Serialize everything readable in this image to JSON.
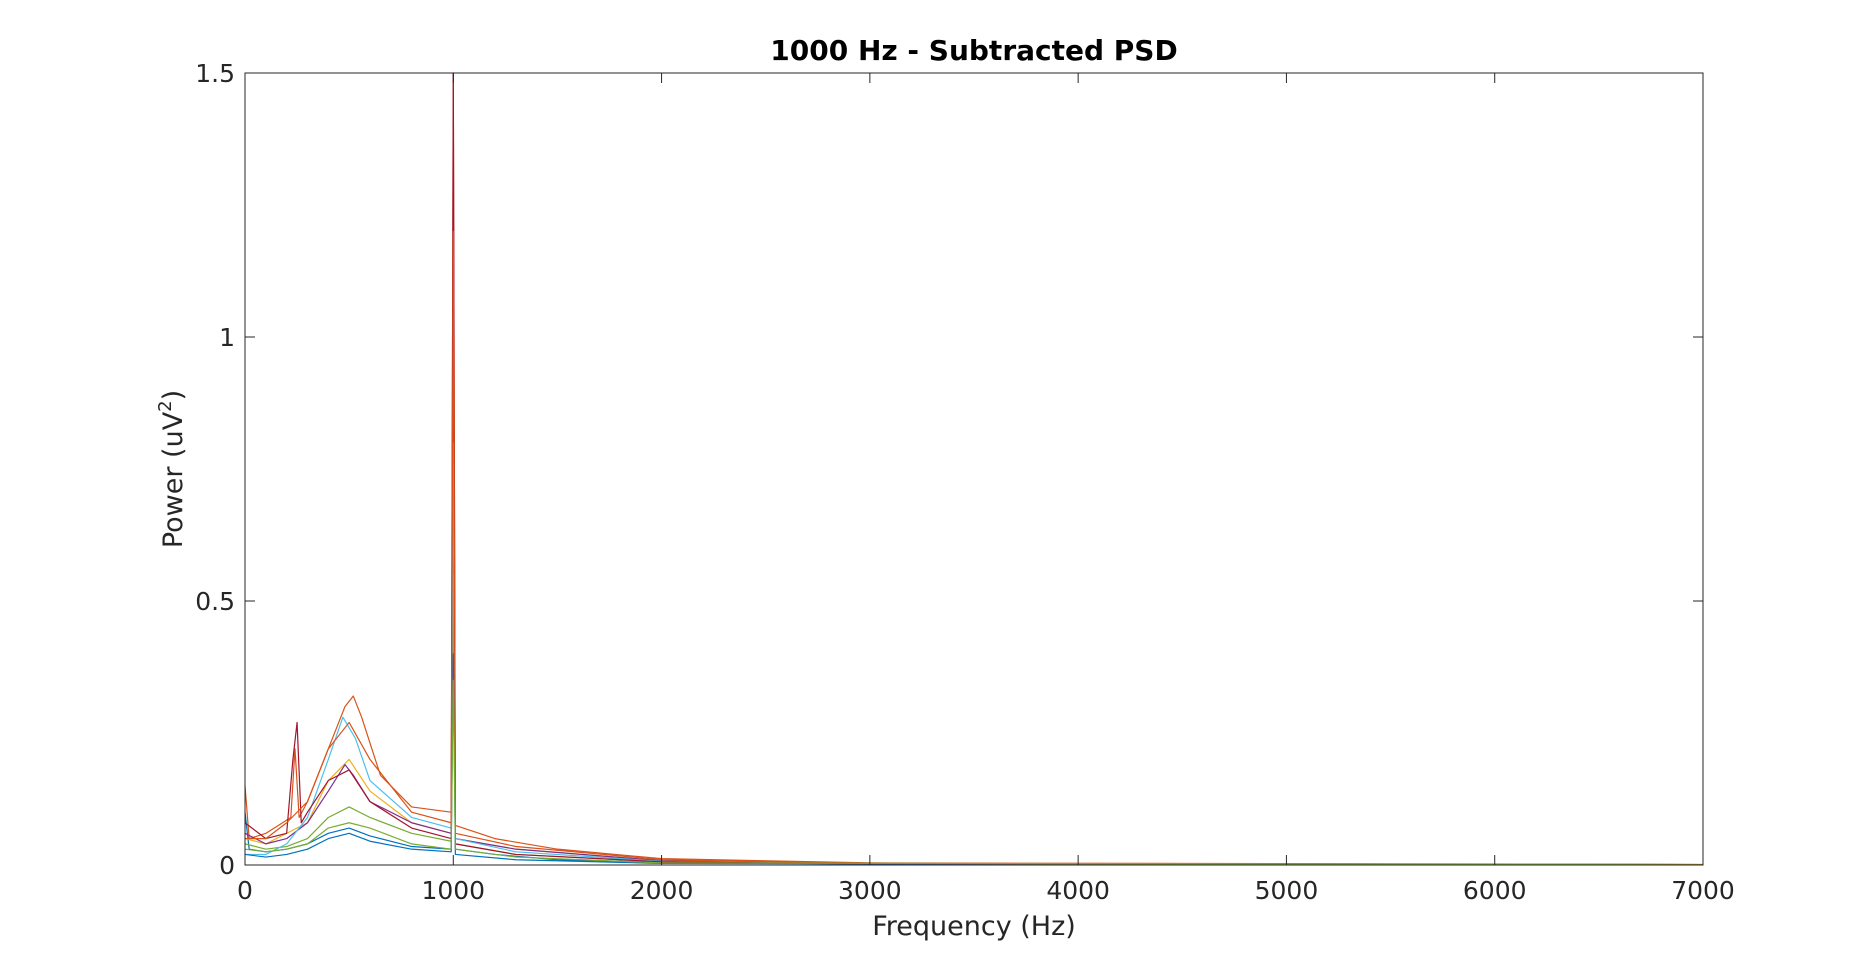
{
  "chart_data": {
    "type": "line",
    "title": "1000 Hz - Subtracted PSD",
    "xlabel": "Frequency (Hz)",
    "ylabel_base": "Power (uV",
    "ylabel_sup": "2",
    "ylabel_end": ")",
    "xlim": [
      0,
      7000
    ],
    "ylim": [
      0,
      1.5
    ],
    "x_ticks": [
      0,
      1000,
      2000,
      3000,
      4000,
      5000,
      6000,
      7000
    ],
    "x_tick_labels": [
      "0",
      "1000",
      "2000",
      "3000",
      "4000",
      "5000",
      "6000",
      "7000"
    ],
    "y_ticks": [
      0,
      0.5,
      1,
      1.5
    ],
    "y_tick_labels": [
      "0",
      "0.5",
      "1",
      "1.5"
    ],
    "grid": false,
    "legend": "none",
    "series": [
      {
        "color": "#0072BD",
        "values": [
          [
            0,
            0.1
          ],
          [
            20,
            0.03
          ],
          [
            100,
            0.025
          ],
          [
            200,
            0.03
          ],
          [
            300,
            0.04
          ],
          [
            400,
            0.06
          ],
          [
            500,
            0.07
          ],
          [
            600,
            0.055
          ],
          [
            800,
            0.035
          ],
          [
            990,
            0.03
          ],
          [
            1000,
            0.76
          ],
          [
            1010,
            0.03
          ],
          [
            1200,
            0.02
          ],
          [
            1500,
            0.01
          ],
          [
            2000,
            0.005
          ],
          [
            3000,
            0.002
          ],
          [
            7000,
            0.0005
          ]
        ]
      },
      {
        "color": "#D95319",
        "values": [
          [
            0,
            0.15
          ],
          [
            20,
            0.05
          ],
          [
            100,
            0.06
          ],
          [
            220,
            0.09
          ],
          [
            240,
            0.22
          ],
          [
            260,
            0.09
          ],
          [
            300,
            0.12
          ],
          [
            400,
            0.22
          ],
          [
            480,
            0.3
          ],
          [
            520,
            0.32
          ],
          [
            560,
            0.28
          ],
          [
            650,
            0.17
          ],
          [
            800,
            0.11
          ],
          [
            990,
            0.1
          ],
          [
            1000,
            1.5
          ],
          [
            1010,
            0.075
          ],
          [
            1200,
            0.05
          ],
          [
            1500,
            0.03
          ],
          [
            2000,
            0.012
          ],
          [
            3000,
            0.004
          ],
          [
            7000,
            0.001
          ]
        ]
      },
      {
        "color": "#EDB120",
        "values": [
          [
            0,
            0.05
          ],
          [
            100,
            0.04
          ],
          [
            200,
            0.06
          ],
          [
            300,
            0.08
          ],
          [
            400,
            0.16
          ],
          [
            500,
            0.2
          ],
          [
            600,
            0.14
          ],
          [
            800,
            0.08
          ],
          [
            990,
            0.06
          ],
          [
            1000,
            0.9
          ],
          [
            1010,
            0.05
          ],
          [
            1300,
            0.03
          ],
          [
            2000,
            0.008
          ],
          [
            3000,
            0.003
          ],
          [
            7000,
            0.0008
          ]
        ]
      },
      {
        "color": "#7E2F8E",
        "values": [
          [
            0,
            0.06
          ],
          [
            100,
            0.04
          ],
          [
            200,
            0.05
          ],
          [
            300,
            0.08
          ],
          [
            400,
            0.14
          ],
          [
            480,
            0.19
          ],
          [
            520,
            0.17
          ],
          [
            600,
            0.12
          ],
          [
            800,
            0.08
          ],
          [
            990,
            0.06
          ],
          [
            1000,
            1.1
          ],
          [
            1010,
            0.05
          ],
          [
            1300,
            0.03
          ],
          [
            2000,
            0.008
          ],
          [
            3000,
            0.003
          ],
          [
            7000,
            0.0008
          ]
        ]
      },
      {
        "color": "#77AC30",
        "values": [
          [
            0,
            0.04
          ],
          [
            100,
            0.03
          ],
          [
            200,
            0.035
          ],
          [
            300,
            0.05
          ],
          [
            400,
            0.09
          ],
          [
            500,
            0.11
          ],
          [
            600,
            0.09
          ],
          [
            800,
            0.06
          ],
          [
            990,
            0.045
          ],
          [
            1000,
            0.55
          ],
          [
            1010,
            0.04
          ],
          [
            1300,
            0.02
          ],
          [
            2000,
            0.006
          ],
          [
            3000,
            0.002
          ],
          [
            7000,
            0.0006
          ]
        ]
      },
      {
        "color": "#4DBEEE",
        "values": [
          [
            0,
            0.02
          ],
          [
            100,
            0.02
          ],
          [
            200,
            0.04
          ],
          [
            300,
            0.09
          ],
          [
            400,
            0.2
          ],
          [
            470,
            0.28
          ],
          [
            530,
            0.24
          ],
          [
            600,
            0.16
          ],
          [
            800,
            0.09
          ],
          [
            990,
            0.07
          ],
          [
            1000,
            0.8
          ],
          [
            1010,
            0.05
          ],
          [
            1300,
            0.025
          ],
          [
            2000,
            0.007
          ],
          [
            3000,
            0.002
          ],
          [
            7000,
            0.0006
          ]
        ]
      },
      {
        "color": "#A2142F",
        "values": [
          [
            0,
            0.08
          ],
          [
            100,
            0.05
          ],
          [
            200,
            0.06
          ],
          [
            230,
            0.2
          ],
          [
            250,
            0.27
          ],
          [
            270,
            0.08
          ],
          [
            300,
            0.1
          ],
          [
            400,
            0.16
          ],
          [
            500,
            0.18
          ],
          [
            600,
            0.12
          ],
          [
            800,
            0.07
          ],
          [
            990,
            0.05
          ],
          [
            1000,
            1.5
          ],
          [
            1010,
            0.04
          ],
          [
            1300,
            0.02
          ],
          [
            2000,
            0.006
          ],
          [
            3000,
            0.002
          ],
          [
            7000,
            0.0005
          ]
        ]
      },
      {
        "color": "#0072BD",
        "values": [
          [
            0,
            0.02
          ],
          [
            100,
            0.015
          ],
          [
            200,
            0.02
          ],
          [
            300,
            0.03
          ],
          [
            400,
            0.05
          ],
          [
            500,
            0.06
          ],
          [
            600,
            0.045
          ],
          [
            800,
            0.03
          ],
          [
            990,
            0.025
          ],
          [
            1000,
            0.4
          ],
          [
            1010,
            0.02
          ],
          [
            1300,
            0.01
          ],
          [
            2000,
            0.003
          ],
          [
            7000,
            0.0003
          ]
        ]
      },
      {
        "color": "#D95319",
        "values": [
          [
            0,
            0.05
          ],
          [
            100,
            0.05
          ],
          [
            200,
            0.08
          ],
          [
            300,
            0.12
          ],
          [
            400,
            0.22
          ],
          [
            500,
            0.27
          ],
          [
            600,
            0.2
          ],
          [
            800,
            0.1
          ],
          [
            990,
            0.08
          ],
          [
            1000,
            1.2
          ],
          [
            1010,
            0.06
          ],
          [
            1300,
            0.035
          ],
          [
            2000,
            0.01
          ],
          [
            3000,
            0.003
          ],
          [
            7000,
            0.0008
          ]
        ]
      },
      {
        "color": "#77AC30",
        "values": [
          [
            0,
            0.03
          ],
          [
            100,
            0.025
          ],
          [
            200,
            0.03
          ],
          [
            300,
            0.04
          ],
          [
            400,
            0.07
          ],
          [
            500,
            0.08
          ],
          [
            600,
            0.07
          ],
          [
            800,
            0.04
          ],
          [
            990,
            0.03
          ],
          [
            1000,
            0.35
          ],
          [
            1010,
            0.03
          ],
          [
            1300,
            0.015
          ],
          [
            2000,
            0.004
          ],
          [
            7000,
            0.0004
          ]
        ]
      }
    ]
  }
}
